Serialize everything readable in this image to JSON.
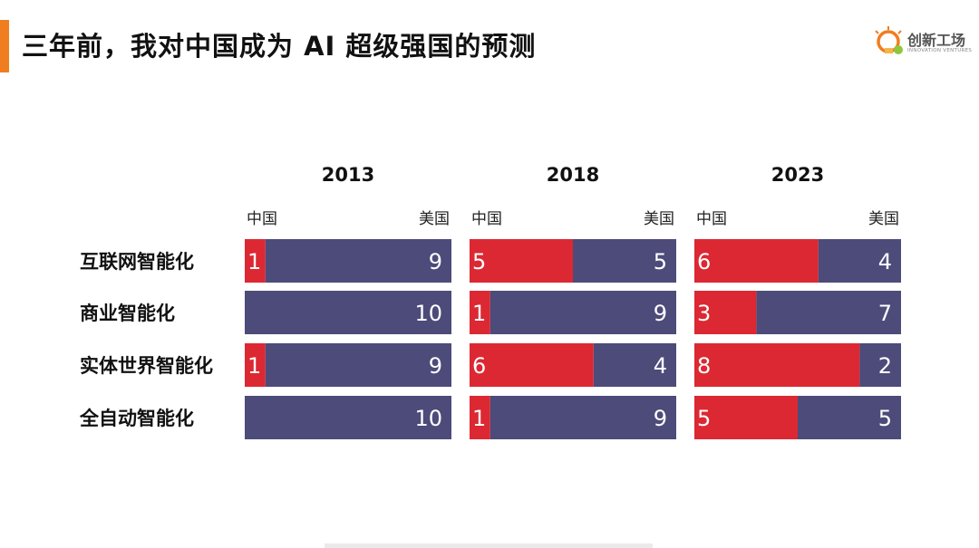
{
  "title": "三年前，我对中国成为 AI 超级强国的预测",
  "logo": {
    "name": "创新工场",
    "sub": "INNOVATION VENTURES",
    "icon": "lightbulb-icon"
  },
  "colors": {
    "accent": "#f07d1f",
    "china": "#dc2832",
    "usa": "#4d4b7a",
    "text": "#111111"
  },
  "chart_data": {
    "type": "bar",
    "stacked": true,
    "orientation": "horizontal",
    "categories": [
      "互联网智能化",
      "商业智能化",
      "实体世界智能化",
      "全自动智能化"
    ],
    "panels": [
      {
        "year": "2013",
        "left_label": "中国",
        "right_label": "美国",
        "series": [
          {
            "name": "中国",
            "values": [
              1,
              0,
              1,
              0
            ]
          },
          {
            "name": "美国",
            "values": [
              9,
              10,
              9,
              10
            ]
          }
        ]
      },
      {
        "year": "2018",
        "left_label": "中国",
        "right_label": "美国",
        "series": [
          {
            "name": "中国",
            "values": [
              5,
              1,
              6,
              1
            ]
          },
          {
            "name": "美国",
            "values": [
              5,
              9,
              4,
              9
            ]
          }
        ]
      },
      {
        "year": "2023",
        "left_label": "中国",
        "right_label": "美国",
        "series": [
          {
            "name": "中国",
            "values": [
              6,
              3,
              8,
              5
            ]
          },
          {
            "name": "美国",
            "values": [
              4,
              7,
              2,
              5
            ]
          }
        ]
      }
    ],
    "xlim": [
      0,
      10
    ]
  }
}
